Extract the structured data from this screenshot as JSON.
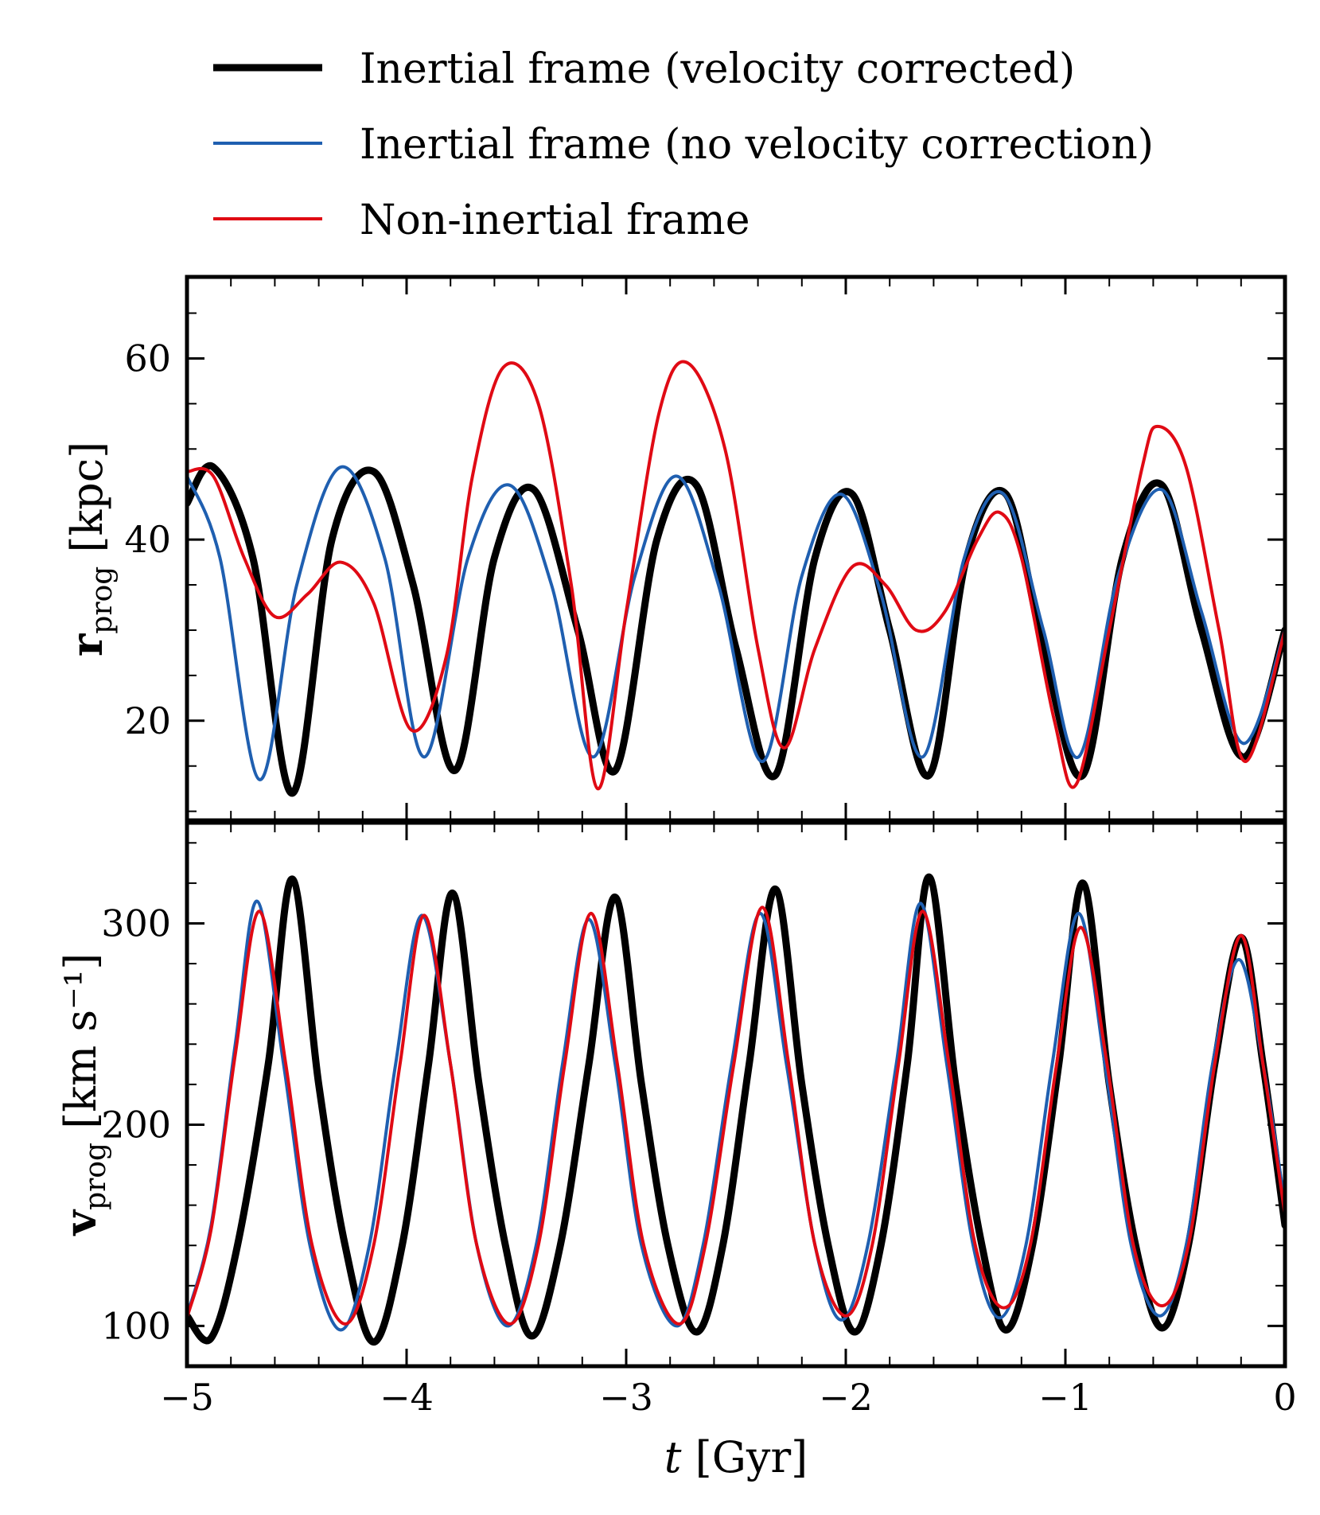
{
  "chart_data": {
    "type": "line",
    "legend": {
      "placement": "top",
      "entries": [
        {
          "label": "Inertial frame (velocity corrected)",
          "color": "#000000",
          "style": "thick"
        },
        {
          "label": "Inertial frame (no velocity correction)",
          "color": "#1f5fb0",
          "style": "thin"
        },
        {
          "label": "Non-inertial frame",
          "color": "#e00a14",
          "style": "thin"
        }
      ]
    },
    "xlabel": {
      "var": "t",
      "unit": "[Gyr]"
    },
    "xlim": [
      -5,
      0
    ],
    "xticks": [
      -5,
      -4,
      -3,
      -2,
      -1,
      0
    ],
    "xtick_labels": [
      "−5",
      "−4",
      "−3",
      "−2",
      "−1",
      "0"
    ],
    "panels": [
      {
        "id": "r",
        "ylabel": {
          "symbol": "r",
          "sub": "prog",
          "unit": "[kpc]"
        },
        "ylim": [
          9,
          69
        ],
        "yticks": [
          20,
          40,
          60
        ],
        "series": [
          {
            "name": "Inertial frame (velocity corrected)",
            "points": [
              [
                -5.0,
                44
              ],
              [
                -4.88,
                48
              ],
              [
                -4.7,
                38
              ],
              [
                -4.52,
                12
              ],
              [
                -4.34,
                40
              ],
              [
                -4.15,
                47.5
              ],
              [
                -3.97,
                35
              ],
              [
                -3.78,
                14.5
              ],
              [
                -3.6,
                38
              ],
              [
                -3.42,
                45.5
              ],
              [
                -3.22,
                30
              ],
              [
                -3.05,
                14.5
              ],
              [
                -2.86,
                40
              ],
              [
                -2.68,
                46
              ],
              [
                -2.5,
                28
              ],
              [
                -2.32,
                14
              ],
              [
                -2.14,
                38
              ],
              [
                -1.97,
                45
              ],
              [
                -1.8,
                30
              ],
              [
                -1.62,
                14
              ],
              [
                -1.45,
                38
              ],
              [
                -1.27,
                45
              ],
              [
                -1.1,
                28
              ],
              [
                -0.92,
                14
              ],
              [
                -0.74,
                38
              ],
              [
                -0.56,
                46
              ],
              [
                -0.38,
                30
              ],
              [
                -0.19,
                16
              ],
              [
                0.0,
                30
              ]
            ]
          },
          {
            "name": "Inertial frame (no velocity correction)",
            "points": [
              [
                -5.0,
                47
              ],
              [
                -4.85,
                38
              ],
              [
                -4.67,
                13.5
              ],
              [
                -4.5,
                35
              ],
              [
                -4.3,
                48
              ],
              [
                -4.1,
                38
              ],
              [
                -3.92,
                16
              ],
              [
                -3.72,
                38
              ],
              [
                -3.53,
                46
              ],
              [
                -3.34,
                35
              ],
              [
                -3.15,
                16
              ],
              [
                -2.96,
                36
              ],
              [
                -2.77,
                47
              ],
              [
                -2.58,
                35
              ],
              [
                -2.38,
                15.5
              ],
              [
                -2.2,
                36
              ],
              [
                -2.02,
                45
              ],
              [
                -1.84,
                34
              ],
              [
                -1.65,
                16
              ],
              [
                -1.46,
                38
              ],
              [
                -1.28,
                45
              ],
              [
                -1.1,
                30
              ],
              [
                -0.94,
                16
              ],
              [
                -0.76,
                36
              ],
              [
                -0.56,
                45.5
              ],
              [
                -0.38,
                32
              ],
              [
                -0.19,
                17.5
              ],
              [
                0.0,
                30
              ]
            ]
          },
          {
            "name": "Non-inertial frame",
            "points": [
              [
                -5.0,
                47.5
              ],
              [
                -4.88,
                47
              ],
              [
                -4.74,
                38
              ],
              [
                -4.6,
                31.5
              ],
              [
                -4.45,
                34
              ],
              [
                -4.3,
                37.5
              ],
              [
                -4.15,
                33
              ],
              [
                -3.98,
                19
              ],
              [
                -3.82,
                27
              ],
              [
                -3.7,
                47
              ],
              [
                -3.56,
                59
              ],
              [
                -3.4,
                55
              ],
              [
                -3.25,
                35
              ],
              [
                -3.13,
                12.5
              ],
              [
                -3.0,
                32
              ],
              [
                -2.85,
                54
              ],
              [
                -2.72,
                59.5
              ],
              [
                -2.55,
                50
              ],
              [
                -2.4,
                28
              ],
              [
                -2.28,
                17
              ],
              [
                -2.14,
                28
              ],
              [
                -1.97,
                37
              ],
              [
                -1.82,
                35
              ],
              [
                -1.68,
                30
              ],
              [
                -1.55,
                32
              ],
              [
                -1.4,
                40
              ],
              [
                -1.3,
                43
              ],
              [
                -1.2,
                38
              ],
              [
                -1.05,
                20
              ],
              [
                -0.95,
                13
              ],
              [
                -0.8,
                30
              ],
              [
                -0.65,
                48
              ],
              [
                -0.58,
                52.5
              ],
              [
                -0.45,
                48
              ],
              [
                -0.3,
                30
              ],
              [
                -0.18,
                15.5
              ],
              [
                0.0,
                30
              ]
            ]
          }
        ]
      },
      {
        "id": "v",
        "ylabel": {
          "symbol": "v",
          "sub": "prog",
          "unit": "[km s⁻¹]"
        },
        "ylim": [
          80,
          350
        ],
        "yticks": [
          100,
          200,
          300
        ],
        "series": [
          {
            "name": "Inertial frame (velocity corrected)",
            "points": [
              [
                -5.0,
                105
              ],
              [
                -4.89,
                94
              ],
              [
                -4.77,
                140
              ],
              [
                -4.63,
                230
              ],
              [
                -4.52,
                322
              ],
              [
                -4.4,
                220
              ],
              [
                -4.28,
                140
              ],
              [
                -4.15,
                92
              ],
              [
                -4.02,
                140
              ],
              [
                -3.9,
                230
              ],
              [
                -3.79,
                315
              ],
              [
                -3.67,
                220
              ],
              [
                -3.55,
                140
              ],
              [
                -3.43,
                95
              ],
              [
                -3.3,
                140
              ],
              [
                -3.17,
                230
              ],
              [
                -3.05,
                313
              ],
              [
                -2.93,
                220
              ],
              [
                -2.81,
                140
              ],
              [
                -2.68,
                97
              ],
              [
                -2.56,
                140
              ],
              [
                -2.44,
                230
              ],
              [
                -2.32,
                317
              ],
              [
                -2.2,
                220
              ],
              [
                -2.08,
                140
              ],
              [
                -1.96,
                97
              ],
              [
                -1.84,
                140
              ],
              [
                -1.72,
                230
              ],
              [
                -1.62,
                323
              ],
              [
                -1.5,
                220
              ],
              [
                -1.38,
                140
              ],
              [
                -1.27,
                98
              ],
              [
                -1.15,
                140
              ],
              [
                -1.03,
                230
              ],
              [
                -0.92,
                320
              ],
              [
                -0.8,
                220
              ],
              [
                -0.68,
                140
              ],
              [
                -0.56,
                99
              ],
              [
                -0.44,
                140
              ],
              [
                -0.32,
                230
              ],
              [
                -0.2,
                293
              ],
              [
                -0.1,
                230
              ],
              [
                0.0,
                150
              ]
            ]
          },
          {
            "name": "Inertial frame (no velocity correction)",
            "points": [
              [
                -5.0,
                105
              ],
              [
                -4.89,
                150
              ],
              [
                -4.78,
                240
              ],
              [
                -4.68,
                311
              ],
              [
                -4.56,
                230
              ],
              [
                -4.44,
                140
              ],
              [
                -4.3,
                98
              ],
              [
                -4.17,
                140
              ],
              [
                -4.05,
                230
              ],
              [
                -3.93,
                304
              ],
              [
                -3.8,
                230
              ],
              [
                -3.68,
                140
              ],
              [
                -3.54,
                100
              ],
              [
                -3.41,
                140
              ],
              [
                -3.29,
                230
              ],
              [
                -3.17,
                302
              ],
              [
                -3.05,
                230
              ],
              [
                -2.93,
                140
              ],
              [
                -2.77,
                100
              ],
              [
                -2.65,
                140
              ],
              [
                -2.52,
                230
              ],
              [
                -2.39,
                305
              ],
              [
                -2.27,
                230
              ],
              [
                -2.14,
                140
              ],
              [
                -2.02,
                103
              ],
              [
                -1.9,
                140
              ],
              [
                -1.77,
                230
              ],
              [
                -1.66,
                310
              ],
              [
                -1.54,
                230
              ],
              [
                -1.42,
                140
              ],
              [
                -1.3,
                104
              ],
              [
                -1.18,
                140
              ],
              [
                -1.06,
                230
              ],
              [
                -0.94,
                305
              ],
              [
                -0.82,
                230
              ],
              [
                -0.7,
                140
              ],
              [
                -0.57,
                105
              ],
              [
                -0.45,
                140
              ],
              [
                -0.33,
                230
              ],
              [
                -0.21,
                282
              ],
              [
                -0.1,
                230
              ],
              [
                0.0,
                160
              ]
            ]
          },
          {
            "name": "Non-inertial frame",
            "points": [
              [
                -5.0,
                104
              ],
              [
                -4.89,
                148
              ],
              [
                -4.78,
                235
              ],
              [
                -4.67,
                306
              ],
              [
                -4.55,
                230
              ],
              [
                -4.43,
                140
              ],
              [
                -4.28,
                101
              ],
              [
                -4.15,
                140
              ],
              [
                -4.03,
                230
              ],
              [
                -3.92,
                304
              ],
              [
                -3.8,
                230
              ],
              [
                -3.68,
                140
              ],
              [
                -3.53,
                101
              ],
              [
                -3.4,
                140
              ],
              [
                -3.28,
                230
              ],
              [
                -3.16,
                305
              ],
              [
                -3.04,
                230
              ],
              [
                -2.92,
                140
              ],
              [
                -2.76,
                101
              ],
              [
                -2.64,
                140
              ],
              [
                -2.51,
                230
              ],
              [
                -2.38,
                308
              ],
              [
                -2.26,
                230
              ],
              [
                -2.14,
                140
              ],
              [
                -2.0,
                105
              ],
              [
                -1.88,
                140
              ],
              [
                -1.76,
                230
              ],
              [
                -1.65,
                306
              ],
              [
                -1.53,
                230
              ],
              [
                -1.41,
                140
              ],
              [
                -1.28,
                109
              ],
              [
                -1.16,
                140
              ],
              [
                -1.04,
                230
              ],
              [
                -0.93,
                298
              ],
              [
                -0.81,
                230
              ],
              [
                -0.69,
                140
              ],
              [
                -0.56,
                110
              ],
              [
                -0.44,
                140
              ],
              [
                -0.32,
                230
              ],
              [
                -0.2,
                294
              ],
              [
                -0.1,
                230
              ],
              [
                0.0,
                155
              ]
            ]
          }
        ]
      }
    ]
  }
}
